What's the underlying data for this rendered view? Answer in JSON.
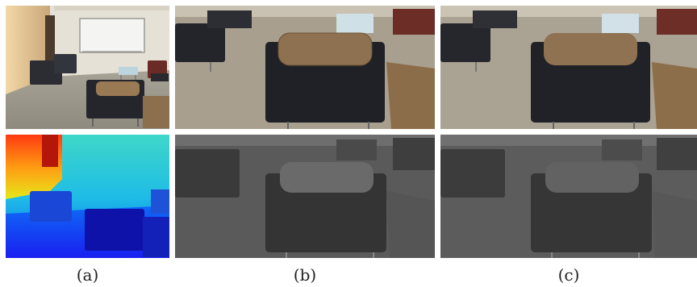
{
  "figure": {
    "panels": [
      {
        "id": "a-rgb",
        "kind": "indoor lounge photo"
      },
      {
        "id": "a-depth",
        "kind": "depth map (jet colormap)"
      },
      {
        "id": "b-color",
        "kind": "zoomed color crop"
      },
      {
        "id": "b-gray",
        "kind": "zoomed grayscale crop"
      },
      {
        "id": "c-color",
        "kind": "zoomed color crop"
      },
      {
        "id": "c-gray",
        "kind": "zoomed grayscale crop"
      }
    ],
    "captions": {
      "a": "(a)",
      "b": "(b)",
      "c": "(c)"
    }
  }
}
